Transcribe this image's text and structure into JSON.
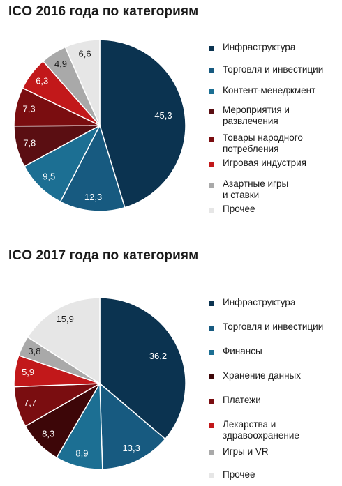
{
  "colors": {
    "navy": "#0b3350",
    "blue": "#175a80",
    "teal": "#1c6f93",
    "maroon": "#5a0e12",
    "darkred": "#7a0d10",
    "red": "#c2181a",
    "gray": "#a9a9a9",
    "light": "#e6e6e6"
  },
  "chart_data": [
    {
      "type": "pie",
      "title": "ICO 2016 года по категориям",
      "slices": [
        {
          "label": "Инфраструктура",
          "value": 45.3,
          "display": "45,3",
          "color": "#0b3350",
          "text_color": "#ffffff"
        },
        {
          "label": "Торговля и инвестиции",
          "value": 12.3,
          "display": "12,3",
          "color": "#175a80",
          "text_color": "#ffffff"
        },
        {
          "label": "Контент-менеджмент",
          "value": 9.5,
          "display": "9,5",
          "color": "#1c6f93",
          "text_color": "#ffffff"
        },
        {
          "label": "Мероприятия и\nразвлечения",
          "value": 7.8,
          "display": "7,8",
          "color": "#5a0e12",
          "text_color": "#ffffff"
        },
        {
          "label": "Товары народного\nпотребления",
          "value": 7.3,
          "display": "7,3",
          "color": "#7a0d10",
          "text_color": "#ffffff"
        },
        {
          "label": "Игровая индустрия",
          "value": 6.3,
          "display": "6,3",
          "color": "#c2181a",
          "text_color": "#ffffff"
        },
        {
          "label": "Азартные игры\nи ставки",
          "value": 4.9,
          "display": "4,9",
          "color": "#a9a9a9",
          "text_color": "#1a1a1a"
        },
        {
          "label": "Прочее",
          "value": 6.6,
          "display": "6,6",
          "color": "#e6e6e6",
          "text_color": "#1a1a1a"
        }
      ],
      "legend_order": [
        0,
        1,
        2,
        3,
        4,
        5,
        6,
        7
      ]
    },
    {
      "type": "pie",
      "title": "ICO 2017 года по категориям",
      "slices": [
        {
          "label": "Инфраструктура",
          "value": 36.2,
          "display": "36,2",
          "color": "#0b3350",
          "text_color": "#ffffff"
        },
        {
          "label": "Торговля и инвестиции",
          "value": 13.3,
          "display": "13,3",
          "color": "#175a80",
          "text_color": "#ffffff"
        },
        {
          "label": "Финансы",
          "value": 8.9,
          "display": "8,9",
          "color": "#1c6f93",
          "text_color": "#ffffff"
        },
        {
          "label": "Хранение данных",
          "value": 8.3,
          "display": "8,3",
          "color": "#3d0608",
          "text_color": "#ffffff"
        },
        {
          "label": "Платежи",
          "value": 7.7,
          "display": "7,7",
          "color": "#7a0d10",
          "text_color": "#ffffff"
        },
        {
          "label": "Лекарства и\nздравоохранение",
          "value": 5.9,
          "display": "5,9",
          "color": "#c2181a",
          "text_color": "#ffffff"
        },
        {
          "label": "Игры и VR",
          "value": 3.8,
          "display": "3,8",
          "color": "#a9a9a9",
          "text_color": "#1a1a1a"
        },
        {
          "label": "Прочее",
          "value": 15.9,
          "display": "15,9",
          "color": "#e6e6e6",
          "text_color": "#1a1a1a"
        }
      ],
      "legend_order": [
        0,
        1,
        2,
        3,
        4,
        5,
        6,
        7
      ]
    }
  ]
}
